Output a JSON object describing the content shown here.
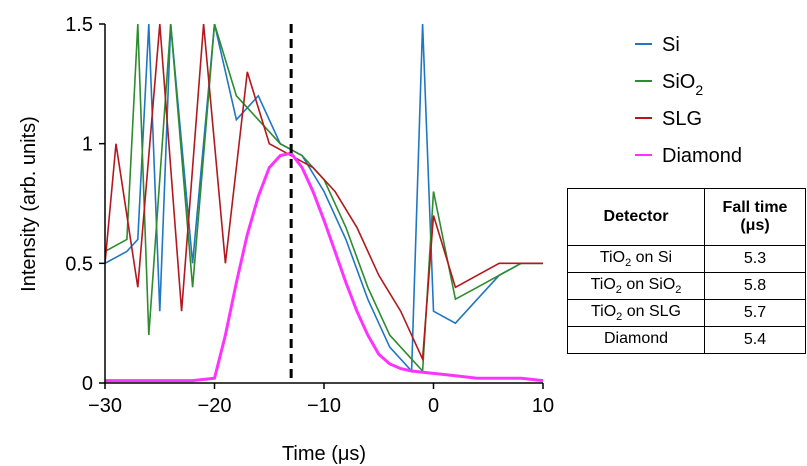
{
  "chart_data": {
    "type": "line",
    "xlabel": "Time (μs)",
    "ylabel": "Intensity (arb. units)",
    "xlim": [
      -30,
      10
    ],
    "ylim": [
      0,
      1.5
    ],
    "x_ticks": [
      "−30",
      "−20",
      "−10",
      "0",
      "10"
    ],
    "y_ticks": [
      "0",
      "0.5",
      "1",
      "1.5"
    ],
    "grid": false,
    "legend_position": "top-right",
    "vline_x": -13,
    "series": [
      {
        "name": "Si",
        "color": "#1f77c4",
        "x": [
          -30,
          -28,
          -27,
          -26,
          -25,
          -24,
          -22,
          -20,
          -18,
          -16,
          -14,
          -12,
          -10,
          -8,
          -6,
          -4,
          -2,
          -1,
          0,
          2,
          4,
          6,
          8,
          10
        ],
        "y": [
          0.5,
          0.55,
          0.6,
          1.5,
          0.3,
          1.5,
          0.5,
          1.5,
          1.1,
          1.2,
          1.0,
          0.95,
          0.8,
          0.6,
          0.35,
          0.15,
          0.05,
          1.5,
          0.3,
          0.25,
          0.35,
          0.45,
          0.5,
          0.5
        ]
      },
      {
        "name": "SiO",
        "name_sub": "2",
        "color": "#2e8b2e",
        "x": [
          -30,
          -28,
          -27,
          -26,
          -24,
          -22,
          -20,
          -18,
          -16,
          -14,
          -12,
          -10,
          -8,
          -6,
          -4,
          -2,
          -1,
          0,
          2,
          4,
          6,
          8,
          10
        ],
        "y": [
          0.55,
          0.6,
          1.5,
          0.2,
          1.5,
          0.4,
          1.5,
          1.2,
          1.1,
          1.0,
          0.95,
          0.85,
          0.65,
          0.4,
          0.2,
          0.1,
          0.05,
          0.8,
          0.35,
          0.4,
          0.45,
          0.5,
          0.5
        ]
      },
      {
        "name": "SLG",
        "color": "#b2191e",
        "x": [
          -30,
          -29,
          -27,
          -25,
          -23,
          -21,
          -19,
          -17,
          -15,
          -13,
          -11,
          -9,
          -7,
          -5,
          -3,
          -2,
          -1,
          0,
          2,
          4,
          6,
          8,
          10
        ],
        "y": [
          0.5,
          1.0,
          0.4,
          1.5,
          0.3,
          1.5,
          0.5,
          1.3,
          1.0,
          0.95,
          0.9,
          0.8,
          0.65,
          0.45,
          0.3,
          0.2,
          0.1,
          0.7,
          0.4,
          0.45,
          0.5,
          0.5,
          0.5
        ]
      },
      {
        "name": "Diamond",
        "color": "#ff33ff",
        "x": [
          -30,
          -22,
          -20,
          -19,
          -18,
          -17,
          -16,
          -15,
          -14,
          -13,
          -12,
          -11,
          -10,
          -9,
          -8,
          -7,
          -6,
          -5,
          -4,
          -3,
          -2,
          0,
          2,
          4,
          6,
          8,
          10
        ],
        "y": [
          0.01,
          0.01,
          0.02,
          0.2,
          0.42,
          0.62,
          0.78,
          0.9,
          0.95,
          0.96,
          0.9,
          0.8,
          0.68,
          0.55,
          0.42,
          0.3,
          0.2,
          0.12,
          0.08,
          0.06,
          0.05,
          0.04,
          0.03,
          0.02,
          0.02,
          0.02,
          0.01
        ]
      }
    ]
  },
  "table": {
    "headers": {
      "detector": "Detector",
      "fall_time": "Fall time",
      "fall_time_unit": "(μs)"
    },
    "rows": [
      {
        "pre": "TiO",
        "sub": "2",
        "post": " on Si",
        "value": "5.3"
      },
      {
        "pre": "TiO",
        "sub": "2",
        "post": " on SiO",
        "post_sub": "2",
        "value": "5.8"
      },
      {
        "pre": "TiO",
        "sub": "2",
        "post": " on SLG",
        "value": "5.7"
      },
      {
        "pre": "Diamond",
        "sub": "",
        "post": "",
        "value": "5.4"
      }
    ]
  }
}
